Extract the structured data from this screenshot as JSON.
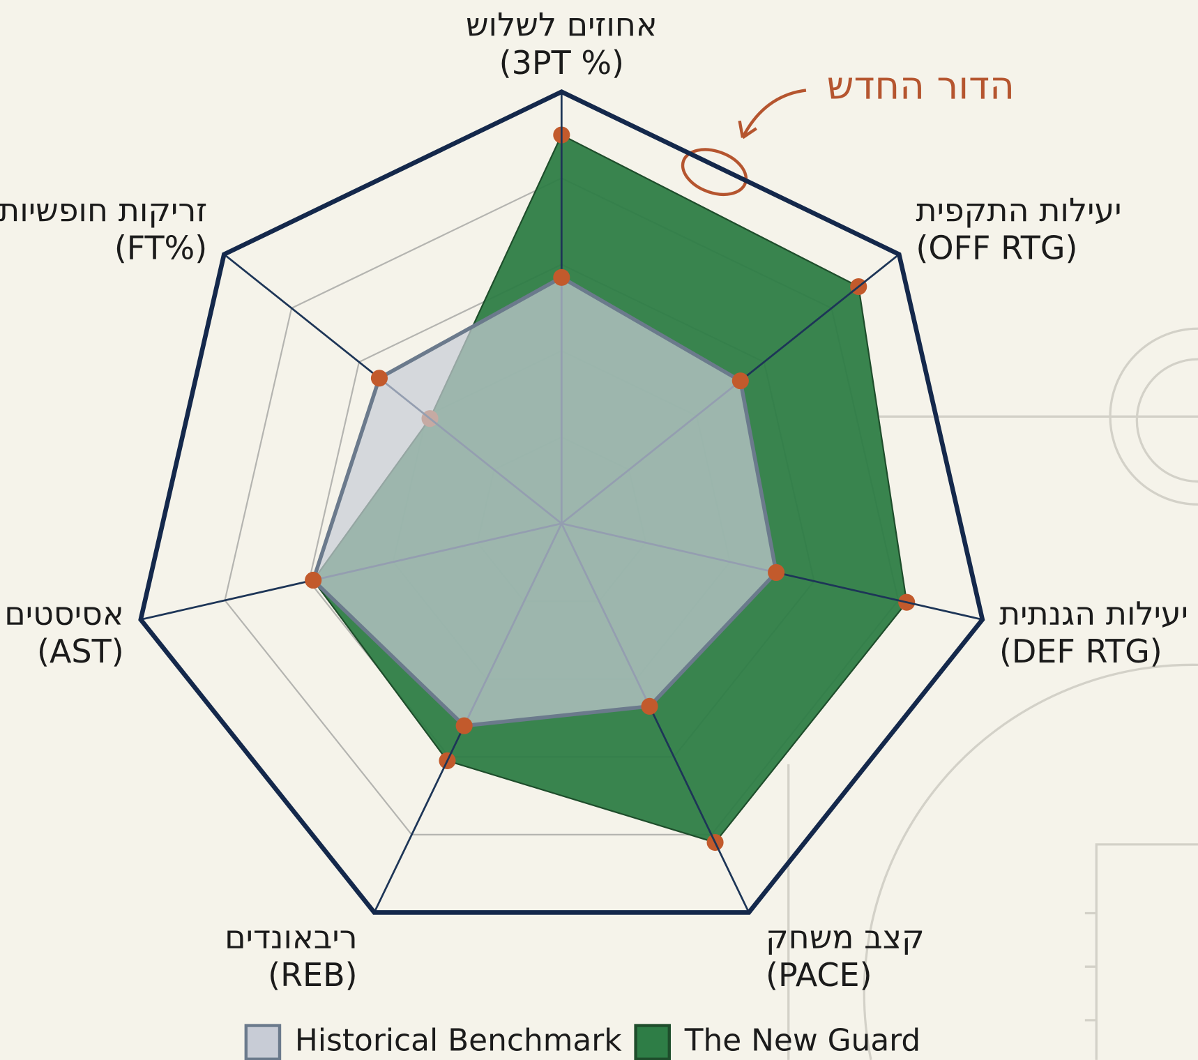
{
  "chart_data": {
    "type": "radar",
    "categories": [
      "אחוזים לשלוש",
      "יעילות התקפית",
      "יעילות הגנתית",
      "קצב משחק",
      "ריבאונדים",
      "אסיסטים",
      "זריקות חופשיות"
    ],
    "category_codes": [
      "(3PT %)",
      "(OFF RTG)",
      "(DEF RTG)",
      "(PACE)",
      "(REB)",
      "(AST)",
      "(FT%)"
    ],
    "series": [
      {
        "name": "Historical Benchmark",
        "color": "#c8ccd6",
        "values": [
          57,
          53,
          51,
          47,
          52,
          59,
          54
        ]
      },
      {
        "name": "The New Guard",
        "color": "#2e7d46",
        "values": [
          90,
          88,
          82,
          82,
          61,
          59,
          39
        ]
      }
    ],
    "ylim": [
      0,
      100
    ],
    "yticks": [
      20,
      40,
      60,
      80,
      100
    ],
    "grid": true,
    "marker_color": "#c25a2c",
    "annotation": "הדור החדש"
  }
}
